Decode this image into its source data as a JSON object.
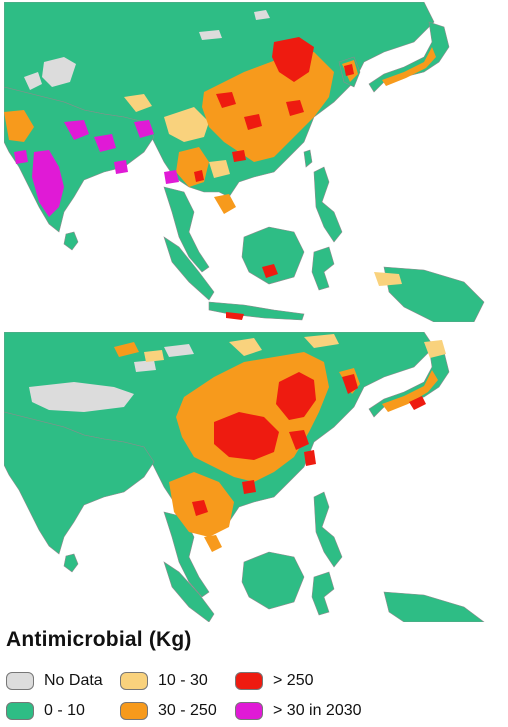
{
  "legend": {
    "title": "Antimicrobial (Kg)",
    "items": [
      {
        "label": "No Data",
        "color": "#dcdcdc"
      },
      {
        "label": "0 - 10",
        "color": "#2ebd85"
      },
      {
        "label": "10 - 30",
        "color": "#f9d27d"
      },
      {
        "label": "30 - 250",
        "color": "#f79a1c"
      },
      {
        "label": "> 250",
        "color": "#ee1b10"
      },
      {
        "label": "> 30 in 2030",
        "color": "#e01ad6"
      }
    ]
  },
  "colors": {
    "no_data": "#dcdcdc",
    "low": "#2ebd85",
    "low_mid": "#f9d27d",
    "mid": "#f79a1c",
    "high": "#ee1b10",
    "growth_2030": "#e01ad6",
    "border": "#8c8c8c",
    "sea": "#ffffff"
  },
  "maps": [
    {
      "name": "top-map-panel"
    },
    {
      "name": "bottom-map-panel"
    }
  ]
}
